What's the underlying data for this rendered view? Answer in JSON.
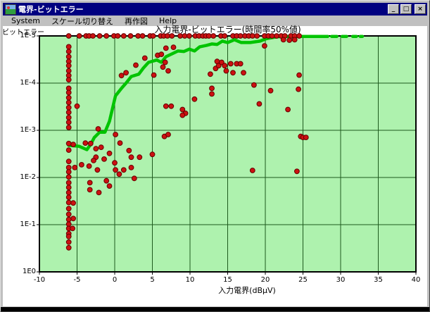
{
  "window": {
    "title": "電界-ビットエラー",
    "buttons": {
      "minimize": "_",
      "maximize": "□",
      "close": "×"
    }
  },
  "menu": {
    "items": [
      "System",
      "スケール切り替え",
      "再作図",
      "Help"
    ]
  },
  "chart_data": {
    "type": "scatter",
    "title": "入力電界-ビットエラー(時間率50%値)",
    "xlabel": "入力電界(dBμV)",
    "ylabel": "ビットエラー",
    "xlim": [
      -10,
      40
    ],
    "x_ticks": [
      -10,
      -5,
      0,
      5,
      10,
      15,
      20,
      25,
      30,
      35,
      40
    ],
    "y_tick_labels": [
      "1E-5",
      "1E-4",
      "1E-3",
      "1E-2",
      "1E-1",
      "1E0"
    ],
    "y_axis_note": "inverted log scale: bit-error-rate 1E-5 at top, 1E0 at bottom; point y values are log10(BER)",
    "grid": true,
    "legend": "none",
    "colors": {
      "plot_bg": "#aef2ae",
      "grid": "#1e5a1e",
      "plot_border": "#000000",
      "scatter_fill": "#cc1111",
      "scatter_edge": "#660000",
      "line": "#00c400",
      "titlebar": "#000080",
      "chrome": "#c0c0c0"
    },
    "series": [
      {
        "name": "measured-points",
        "type": "scatter",
        "points": [
          [
            -6.1,
            -5
          ],
          [
            -4.7,
            -5
          ],
          [
            -3.8,
            -5
          ],
          [
            -3.4,
            -5
          ],
          [
            -2.9,
            -5
          ],
          [
            -2,
            -5
          ],
          [
            -1.1,
            -5
          ],
          [
            -0.1,
            -5
          ],
          [
            0.4,
            -5
          ],
          [
            1.2,
            -5
          ],
          [
            2.1,
            -5
          ],
          [
            3.1,
            -5
          ],
          [
            3.7,
            -5
          ],
          [
            4.7,
            -5
          ],
          [
            5.1,
            -5
          ],
          [
            6.1,
            -5
          ],
          [
            6.5,
            -5
          ],
          [
            7,
            -5
          ],
          [
            7.6,
            -5
          ],
          [
            8.7,
            -5
          ],
          [
            9.3,
            -5
          ],
          [
            9.9,
            -5
          ],
          [
            10.7,
            -5
          ],
          [
            11.2,
            -5
          ],
          [
            11.7,
            -5
          ],
          [
            12.1,
            -5
          ],
          [
            12.5,
            -5
          ],
          [
            13.1,
            -5
          ],
          [
            14.1,
            -5
          ],
          [
            14.6,
            -5
          ],
          [
            15.7,
            -5
          ],
          [
            16.2,
            -5
          ],
          [
            16.7,
            -5
          ],
          [
            17.3,
            -5
          ],
          [
            17.8,
            -5
          ],
          [
            18.3,
            -5
          ],
          [
            18.9,
            -5
          ],
          [
            19.9,
            -5
          ],
          [
            20.4,
            -5
          ],
          [
            20.9,
            -5
          ],
          [
            21.5,
            -5
          ],
          [
            22.1,
            -5
          ],
          [
            22.6,
            -5
          ],
          [
            23.4,
            -5
          ],
          [
            23.9,
            -5
          ],
          [
            24.5,
            -5
          ],
          [
            -6.1,
            -4.77
          ],
          [
            -6.1,
            -4.67
          ],
          [
            -6.1,
            -4.56
          ],
          [
            -6.1,
            -4.46
          ],
          [
            -6.1,
            -4.37
          ],
          [
            -6.1,
            -4.26
          ],
          [
            -6.1,
            -4.16
          ],
          [
            -6.1,
            -4.07
          ],
          [
            -6.1,
            -3.89
          ],
          [
            -6.1,
            -3.8
          ],
          [
            -6.1,
            -3.69
          ],
          [
            -6.1,
            -3.59
          ],
          [
            -6.1,
            -3.48
          ],
          [
            -6.1,
            -3.38
          ],
          [
            -6.1,
            -3.27
          ],
          [
            -6.1,
            -3.17
          ],
          [
            -6.1,
            -3.06
          ],
          [
            -6.1,
            -2.72
          ],
          [
            -6.1,
            -2.58
          ],
          [
            -6.1,
            -2.34
          ],
          [
            -6.1,
            -2.21
          ],
          [
            -6.1,
            -2.12
          ],
          [
            -6.1,
            -2.01
          ],
          [
            -6.1,
            -1.89
          ],
          [
            -6.1,
            -1.79
          ],
          [
            -6.1,
            -1.68
          ],
          [
            -6.1,
            -1.58
          ],
          [
            -6.1,
            -1.47
          ],
          [
            -5.5,
            -1.46
          ],
          [
            -6.1,
            -1.34
          ],
          [
            -6.1,
            -1.22
          ],
          [
            -5.5,
            -1.13
          ],
          [
            -6.1,
            -1.11
          ],
          [
            -6.1,
            -1.01
          ],
          [
            -6.1,
            -0.92
          ],
          [
            -5.6,
            -0.92
          ],
          [
            -6.1,
            -0.81
          ],
          [
            -6.1,
            -0.75
          ],
          [
            -6.1,
            -0.63
          ],
          [
            -6.1,
            -0.51
          ],
          [
            0.9,
            -4.16
          ],
          [
            1.5,
            -4.22
          ],
          [
            2.8,
            -4.38
          ],
          [
            4,
            -4.53
          ],
          [
            5.2,
            -4.17
          ],
          [
            5.7,
            -4.59
          ],
          [
            6.2,
            -4.61
          ],
          [
            6.8,
            -4.74
          ],
          [
            7.8,
            -4.76
          ],
          [
            6.7,
            -4.44
          ],
          [
            6.4,
            -4.34
          ],
          [
            7.1,
            -4.26
          ],
          [
            12.7,
            -4.19
          ],
          [
            13.4,
            -4.31
          ],
          [
            13.6,
            -4.46
          ],
          [
            13.8,
            -4.37
          ],
          [
            14.2,
            -4.44
          ],
          [
            14.6,
            -4.37
          ],
          [
            14.8,
            -4.26
          ],
          [
            15.4,
            -4.41
          ],
          [
            16.2,
            -4.41
          ],
          [
            16.7,
            -4.41
          ],
          [
            15.7,
            -4.22
          ],
          [
            17.1,
            -4.22
          ],
          [
            19.9,
            -4.79
          ],
          [
            18.5,
            -3.96
          ],
          [
            20.7,
            -3.84
          ],
          [
            24.5,
            -4.17
          ],
          [
            22.4,
            -4.92
          ],
          [
            23.2,
            -4.91
          ],
          [
            23.9,
            -4.92
          ],
          [
            12.9,
            -3.89
          ],
          [
            12.9,
            -3.77
          ],
          [
            10.6,
            -3.66
          ],
          [
            6.8,
            -3.51
          ],
          [
            7.5,
            -3.51
          ],
          [
            9,
            -3.44
          ],
          [
            9.4,
            -3.36
          ],
          [
            9,
            -3.32
          ],
          [
            19.2,
            -3.56
          ],
          [
            23,
            -3.44
          ],
          [
            24.4,
            -3.87
          ],
          [
            -5,
            -3.51
          ],
          [
            -3.9,
            -2.73
          ],
          [
            -3.2,
            -2.72
          ],
          [
            -2.2,
            -3.03
          ],
          [
            -2.5,
            -2.61
          ],
          [
            -1.8,
            -2.64
          ],
          [
            -2.5,
            -2.43
          ],
          [
            -2.8,
            -2.36
          ],
          [
            -1.4,
            -2.39
          ],
          [
            -0.7,
            -2.51
          ],
          [
            0.1,
            -2.91
          ],
          [
            0.7,
            -2.73
          ],
          [
            0,
            -2.31
          ],
          [
            1.9,
            -2.57
          ],
          [
            2.2,
            -2.43
          ],
          [
            2.2,
            -2.21
          ],
          [
            1.2,
            -2.16
          ],
          [
            0.1,
            -2.16
          ],
          [
            -2.3,
            -2.16
          ],
          [
            -3.4,
            -2.24
          ],
          [
            -4.4,
            -2.27
          ],
          [
            3.3,
            -2.43
          ],
          [
            5,
            -2.49
          ],
          [
            6.6,
            -2.87
          ],
          [
            7.1,
            -2.91
          ],
          [
            24.7,
            -2.87
          ],
          [
            25,
            -2.85
          ],
          [
            25.4,
            -2.85
          ],
          [
            -5.5,
            -2.7
          ],
          [
            0.6,
            -2.07
          ],
          [
            -5.3,
            -2.21
          ],
          [
            -3.3,
            -1.89
          ],
          [
            -1.1,
            -1.93
          ],
          [
            -0.7,
            -1.82
          ],
          [
            -3.3,
            -1.74
          ],
          [
            -2.1,
            -1.68
          ],
          [
            18.3,
            -2.15
          ],
          [
            24.2,
            -2.13
          ],
          [
            2.6,
            -1.98
          ]
        ]
      },
      {
        "name": "time-rate-50pct-curve",
        "type": "line",
        "points": [
          [
            -6.1,
            -2.68
          ],
          [
            -4.7,
            -2.66
          ],
          [
            -3.7,
            -2.59
          ],
          [
            -3.2,
            -2.7
          ],
          [
            -2.7,
            -2.85
          ],
          [
            -2,
            -2.96
          ],
          [
            -1.3,
            -2.96
          ],
          [
            -0.7,
            -3.19
          ],
          [
            0.1,
            -3.73
          ],
          [
            0.9,
            -3.89
          ],
          [
            1.5,
            -4
          ],
          [
            2.2,
            -4.14
          ],
          [
            3.2,
            -4.19
          ],
          [
            3.8,
            -4.32
          ],
          [
            4.5,
            -4.44
          ],
          [
            5.6,
            -4.49
          ],
          [
            6.2,
            -4.44
          ],
          [
            6.8,
            -4.56
          ],
          [
            7.6,
            -4.62
          ],
          [
            8.4,
            -4.68
          ],
          [
            9.2,
            -4.67
          ],
          [
            9.9,
            -4.72
          ],
          [
            10.6,
            -4.68
          ],
          [
            11.3,
            -4.77
          ],
          [
            12.2,
            -4.8
          ],
          [
            12.9,
            -4.83
          ],
          [
            13.6,
            -4.82
          ],
          [
            14.3,
            -4.89
          ],
          [
            15,
            -4.86
          ],
          [
            15.9,
            -4.92
          ],
          [
            16.8,
            -4.86
          ],
          [
            18,
            -4.86
          ],
          [
            19.3,
            -4.89
          ],
          [
            20.1,
            -4.94
          ],
          [
            21.1,
            -4.97
          ],
          [
            22.1,
            -4.99
          ],
          [
            24.1,
            -4.99
          ],
          [
            28.3,
            -4.99
          ]
        ],
        "dash_tail_log10": -4.99,
        "dash_segments_x": [
          [
            28.8,
            29.5
          ],
          [
            30.2,
            30.8
          ],
          [
            31.6,
            32.1
          ],
          [
            32.6,
            32.9
          ]
        ]
      }
    ]
  }
}
